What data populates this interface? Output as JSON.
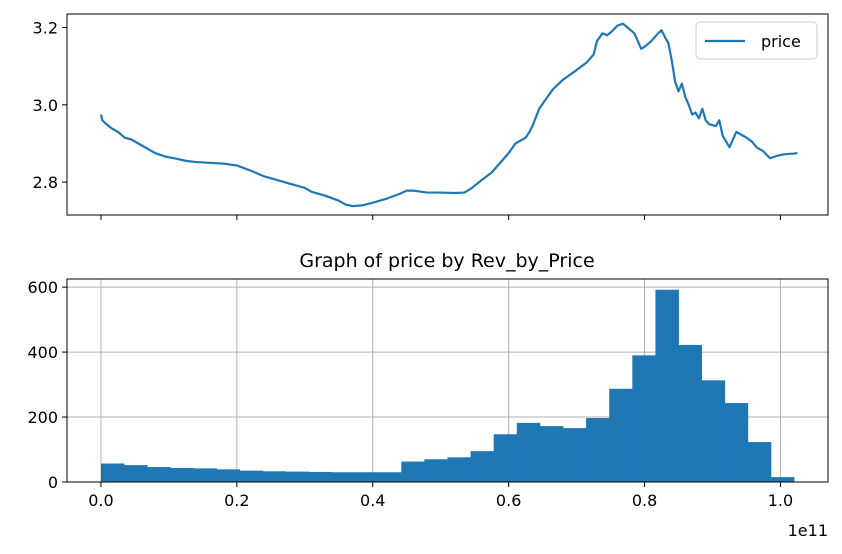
{
  "chart_data": [
    {
      "type": "line",
      "title": "",
      "xlabel": "",
      "ylabel": "",
      "ylim": [
        2.715,
        3.235
      ],
      "yticks": [
        2.8,
        3.0,
        3.2
      ],
      "ytick_labels": [
        "2.8",
        "3.0",
        "3.2"
      ],
      "xlim": [
        -0.05,
        1.07
      ],
      "xticks": [
        0.0,
        0.2,
        0.4,
        0.6,
        0.8,
        1.0
      ],
      "xtick_labels_visible": false,
      "grid": false,
      "legend": {
        "placement": "top-right",
        "entries": [
          "price"
        ]
      },
      "color": "#1f77b4",
      "series": [
        {
          "name": "price",
          "points": [
            [
              0.0,
              2.975
            ],
            [
              0.002,
              2.96
            ],
            [
              0.008,
              2.95
            ],
            [
              0.015,
              2.94
            ],
            [
              0.025,
              2.93
            ],
            [
              0.035,
              2.915
            ],
            [
              0.045,
              2.91
            ],
            [
              0.055,
              2.9
            ],
            [
              0.065,
              2.89
            ],
            [
              0.08,
              2.875
            ],
            [
              0.095,
              2.866
            ],
            [
              0.11,
              2.861
            ],
            [
              0.125,
              2.855
            ],
            [
              0.14,
              2.852
            ],
            [
              0.16,
              2.85
            ],
            [
              0.18,
              2.848
            ],
            [
              0.2,
              2.843
            ],
            [
              0.22,
              2.83
            ],
            [
              0.24,
              2.815
            ],
            [
              0.26,
              2.805
            ],
            [
              0.28,
              2.795
            ],
            [
              0.3,
              2.785
            ],
            [
              0.31,
              2.775
            ],
            [
              0.33,
              2.765
            ],
            [
              0.35,
              2.752
            ],
            [
              0.36,
              2.742
            ],
            [
              0.37,
              2.738
            ],
            [
              0.385,
              2.74
            ],
            [
              0.4,
              2.747
            ],
            [
              0.42,
              2.757
            ],
            [
              0.44,
              2.77
            ],
            [
              0.45,
              2.778
            ],
            [
              0.46,
              2.778
            ],
            [
              0.48,
              2.773
            ],
            [
              0.5,
              2.773
            ],
            [
              0.52,
              2.772
            ],
            [
              0.535,
              2.773
            ],
            [
              0.545,
              2.784
            ],
            [
              0.56,
              2.805
            ],
            [
              0.575,
              2.825
            ],
            [
              0.59,
              2.855
            ],
            [
              0.6,
              2.875
            ],
            [
              0.61,
              2.9
            ],
            [
              0.625,
              2.915
            ],
            [
              0.63,
              2.928
            ],
            [
              0.635,
              2.945
            ],
            [
              0.645,
              2.99
            ],
            [
              0.655,
              3.015
            ],
            [
              0.665,
              3.04
            ],
            [
              0.68,
              3.065
            ],
            [
              0.7,
              3.09
            ],
            [
              0.715,
              3.11
            ],
            [
              0.725,
              3.13
            ],
            [
              0.73,
              3.165
            ],
            [
              0.738,
              3.185
            ],
            [
              0.745,
              3.18
            ],
            [
              0.752,
              3.19
            ],
            [
              0.76,
              3.205
            ],
            [
              0.768,
              3.21
            ],
            [
              0.775,
              3.2
            ],
            [
              0.785,
              3.185
            ],
            [
              0.79,
              3.165
            ],
            [
              0.795,
              3.145
            ],
            [
              0.8,
              3.15
            ],
            [
              0.81,
              3.165
            ],
            [
              0.82,
              3.185
            ],
            [
              0.825,
              3.193
            ],
            [
              0.83,
              3.175
            ],
            [
              0.835,
              3.16
            ],
            [
              0.84,
              3.115
            ],
            [
              0.845,
              3.06
            ],
            [
              0.85,
              3.035
            ],
            [
              0.855,
              3.055
            ],
            [
              0.86,
              3.02
            ],
            [
              0.865,
              3.0
            ],
            [
              0.87,
              2.975
            ],
            [
              0.875,
              2.98
            ],
            [
              0.88,
              2.965
            ],
            [
              0.885,
              2.99
            ],
            [
              0.89,
              2.96
            ],
            [
              0.895,
              2.95
            ],
            [
              0.905,
              2.945
            ],
            [
              0.91,
              2.96
            ],
            [
              0.915,
              2.92
            ],
            [
              0.92,
              2.905
            ],
            [
              0.925,
              2.89
            ],
            [
              0.93,
              2.91
            ],
            [
              0.935,
              2.93
            ],
            [
              0.945,
              2.92
            ],
            [
              0.95,
              2.915
            ],
            [
              0.958,
              2.905
            ],
            [
              0.965,
              2.89
            ],
            [
              0.97,
              2.885
            ],
            [
              0.975,
              2.88
            ],
            [
              0.98,
              2.87
            ],
            [
              0.985,
              2.862
            ],
            [
              0.995,
              2.868
            ],
            [
              1.005,
              2.872
            ],
            [
              1.02,
              2.874
            ],
            [
              1.025,
              2.875
            ]
          ]
        }
      ]
    },
    {
      "type": "bar",
      "title": "Graph of price by Rev_by_Price",
      "xlabel": "",
      "ylabel": "",
      "ylim": [
        0,
        625
      ],
      "yticks": [
        0,
        200,
        400,
        600
      ],
      "ytick_labels": [
        "0",
        "200",
        "400",
        "600"
      ],
      "xlim": [
        -0.05,
        1.07
      ],
      "xticks": [
        0.0,
        0.2,
        0.4,
        0.6,
        0.8,
        1.0
      ],
      "xtick_labels": [
        "0.0",
        "0.2",
        "0.4",
        "0.6",
        "0.8",
        "1.0"
      ],
      "x_offset_label": "1e11",
      "grid": true,
      "color": "#1f77b4",
      "bin_edges": [
        0.0,
        0.034,
        0.068,
        0.102,
        0.136,
        0.17,
        0.204,
        0.238,
        0.272,
        0.306,
        0.34,
        0.374,
        0.408,
        0.442,
        0.476,
        0.51,
        0.544,
        0.578,
        0.612,
        0.646,
        0.68,
        0.714,
        0.748,
        0.782,
        0.816,
        0.85,
        0.884,
        0.918,
        0.952,
        0.986,
        1.02
      ],
      "values": [
        57,
        52,
        46,
        43,
        42,
        39,
        35,
        33,
        32,
        31,
        30,
        30,
        30,
        63,
        70,
        76,
        95,
        147,
        182,
        172,
        166,
        197,
        287,
        390,
        592,
        422,
        313,
        243,
        123,
        15
      ]
    }
  ]
}
